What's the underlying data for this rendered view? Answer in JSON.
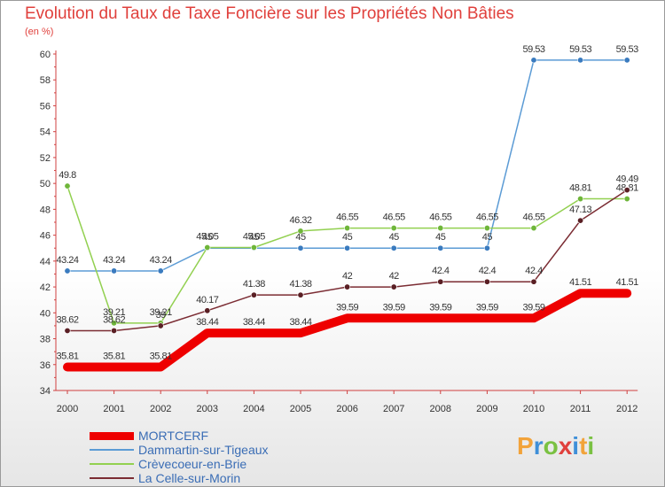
{
  "header": {
    "title": "Evolution du Taux de Taxe Foncière sur les Propriétés Non Bâties",
    "subtitle": "(en %)"
  },
  "brand": {
    "letters": [
      "P",
      "r",
      "o",
      "x",
      "i",
      "t",
      "i"
    ],
    "colors": [
      "#f2a33a",
      "#3f8fd8",
      "#7ac142",
      "#e0403c",
      "#3f8fd8",
      "#f2a33a",
      "#7ac142"
    ]
  },
  "chart_data": {
    "type": "line",
    "title": "Evolution du Taux de Taxe Foncière sur les Propriétés Non Bâties",
    "ylabel": "(en %)",
    "xlabel": "",
    "categories": [
      "2000",
      "2001",
      "2002",
      "2003",
      "2004",
      "2005",
      "2006",
      "2007",
      "2008",
      "2009",
      "2010",
      "2011",
      "2012"
    ],
    "ylim": [
      34,
      60
    ],
    "yticks": [
      "34",
      "36",
      "38",
      "40",
      "42",
      "44",
      "46",
      "48",
      "50",
      "52",
      "54",
      "56",
      "58",
      "60"
    ],
    "step_lines": true,
    "grid": false,
    "legend_position": "bottom-left",
    "series": [
      {
        "name": "MORTCERF",
        "color": "#ee0000",
        "emphasis": true,
        "values": [
          35.81,
          35.81,
          35.81,
          38.44,
          38.44,
          38.44,
          39.59,
          39.59,
          39.59,
          39.59,
          39.59,
          41.51,
          41.51
        ],
        "labels": [
          "35.81",
          "35.81",
          "35.81",
          "38.44",
          "38.44",
          "38.44",
          "39.59",
          "39.59",
          "39.59",
          "39.59",
          "39.59",
          "41.51",
          "41.51"
        ]
      },
      {
        "name": "Dammartin-sur-Tigeaux",
        "color": "#5b9bd5",
        "point_color": "#3a7bbf",
        "values": [
          43.24,
          43.24,
          43.24,
          45,
          45,
          45,
          45,
          45,
          45,
          45,
          59.53,
          59.53,
          59.53
        ],
        "labels": [
          "43.24",
          "43.24",
          "43.24",
          "45",
          "45",
          "45",
          "45",
          "45",
          "45",
          "45",
          "59.53",
          "59.53",
          "59.53"
        ]
      },
      {
        "name": "Crèvecoeur-en-Brie",
        "color": "#92d050",
        "point_color": "#6fb63a",
        "values": [
          49.8,
          39.21,
          39.21,
          45.05,
          45.05,
          46.32,
          46.55,
          46.55,
          46.55,
          46.55,
          46.55,
          48.81,
          48.81
        ],
        "labels": [
          "49.8",
          "39.21",
          "39.21",
          "45.05",
          "45.05",
          "46.32",
          "46.55",
          "46.55",
          "46.55",
          "46.55",
          "46.55",
          "48.81",
          "48.81"
        ]
      },
      {
        "name": "La Celle-sur-Morin",
        "color": "#7b2c33",
        "point_color": "#5a1f24",
        "values": [
          38.62,
          38.62,
          39,
          40.17,
          41.38,
          41.38,
          42,
          42,
          42.4,
          42.4,
          42.4,
          47.13,
          49.49
        ],
        "labels": [
          "38.62",
          "38.62",
          "39",
          "40.17",
          "41.38",
          "41.38",
          "42",
          "42",
          "42.4",
          "42.4",
          "42.4",
          "47.13",
          "49.49"
        ]
      }
    ]
  }
}
